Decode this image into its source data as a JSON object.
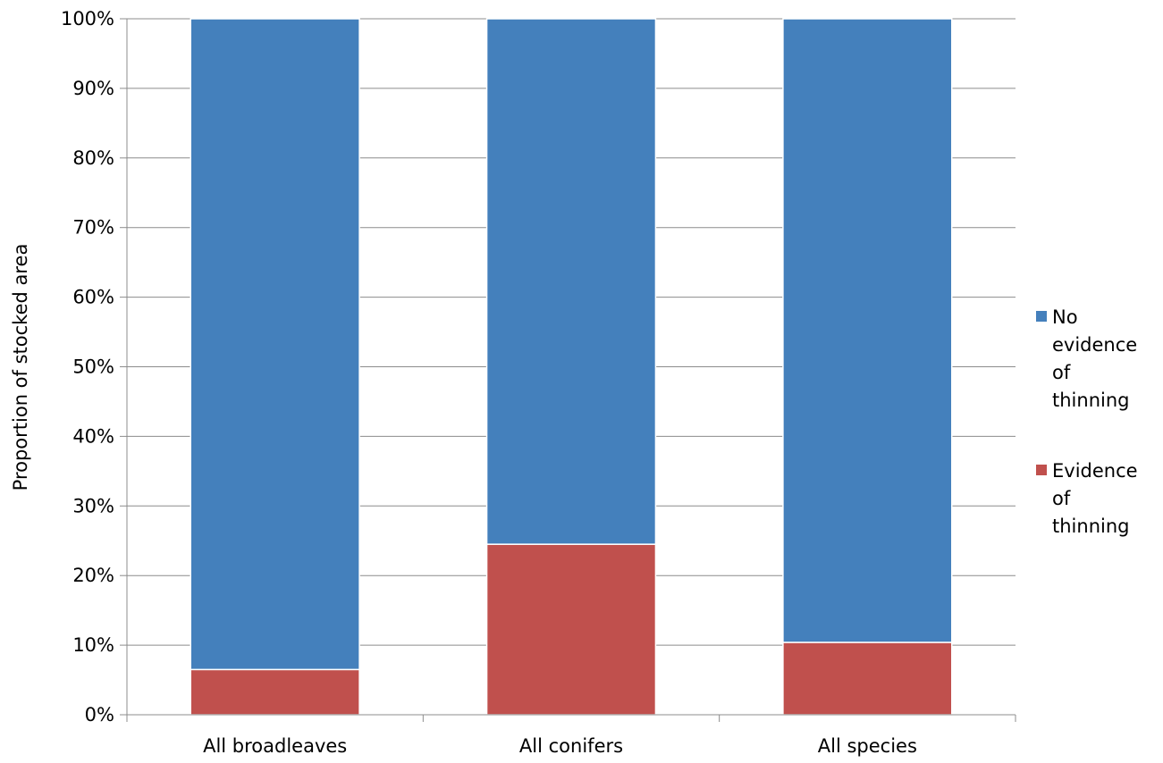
{
  "chart_data": {
    "type": "bar",
    "stacked": true,
    "title": "",
    "xlabel": "",
    "ylabel": "Proportion of stocked area",
    "ylim": [
      0,
      100
    ],
    "y_ticks": [
      "0%",
      "10%",
      "20%",
      "30%",
      "40%",
      "50%",
      "60%",
      "70%",
      "80%",
      "90%",
      "100%"
    ],
    "grid": true,
    "legend_position": "right",
    "categories": [
      "All broadleaves",
      "All conifers",
      "All species"
    ],
    "series": [
      {
        "name": "Evidence of thinning",
        "values": [
          6.5,
          24.5,
          10.4
        ],
        "color": "#C0504D"
      },
      {
        "name": "No evidence of thinning",
        "values": [
          93.5,
          75.5,
          89.6
        ],
        "color": "#4480BC"
      }
    ],
    "legend": [
      {
        "series_index": 1,
        "lines": [
          "No",
          "evidence",
          "of",
          "thinning"
        ]
      },
      {
        "series_index": 0,
        "lines": [
          "Evidence",
          "of",
          "thinning"
        ]
      }
    ]
  }
}
